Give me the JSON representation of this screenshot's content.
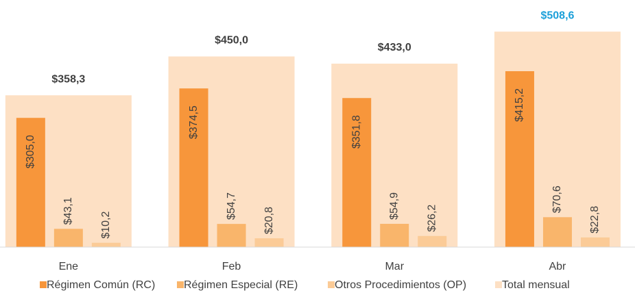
{
  "chart_data": {
    "type": "bar",
    "categories": [
      "Ene",
      "Feb",
      "Mar",
      "Abr"
    ],
    "ylim": [
      0,
      580
    ],
    "series": [
      {
        "name": "Régimen Común (RC)",
        "color": "#f7963b",
        "values": [
          305.0,
          374.5,
          351.8,
          415.2
        ],
        "value_labels": [
          "$305,0",
          "$374,5",
          "$351,8",
          "$415,2"
        ]
      },
      {
        "name": "Régimen Especial (RE)",
        "color": "#f9b56b",
        "values": [
          43.1,
          54.7,
          54.9,
          70.6
        ],
        "value_labels": [
          "$43,1",
          "$54,7",
          "$54,9",
          "$70,6"
        ]
      },
      {
        "name": "Otros Procedimientos (OP)",
        "color": "#fbcb97",
        "values": [
          10.2,
          20.8,
          26.2,
          22.8
        ],
        "value_labels": [
          "$10,2",
          "$20,8",
          "$26,2",
          "$22,8"
        ]
      },
      {
        "name": "Total mensual",
        "color": "#fde0c4",
        "values": [
          358.3,
          450.0,
          433.0,
          508.6
        ],
        "value_labels": [
          "$358,3",
          "$450,0",
          "$433,0",
          "$508,6"
        ],
        "label_colors": [
          "#404040",
          "#404040",
          "#404040",
          "#1b9fd9"
        ]
      }
    ]
  }
}
